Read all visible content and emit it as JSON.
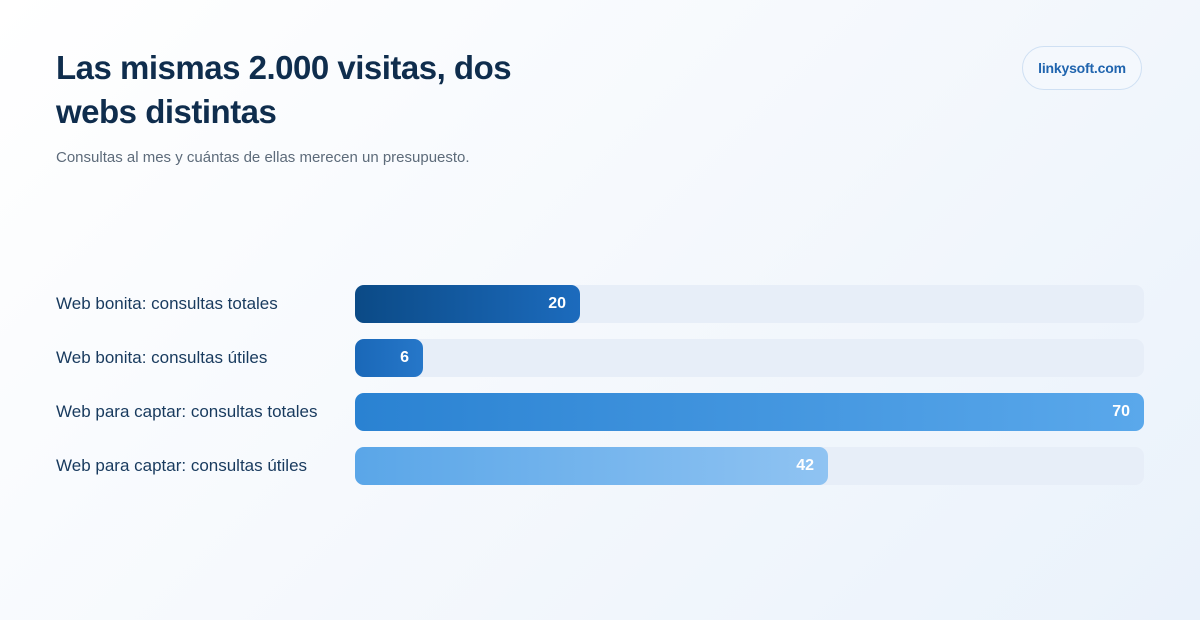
{
  "header": {
    "title": "Las mismas 2.000 visitas, dos webs distintas",
    "subtitle": "Consultas al mes y cuántas de ellas merecen un presupuesto.",
    "brand": "linkysoft.com"
  },
  "chart_data": {
    "type": "bar",
    "orientation": "horizontal",
    "title": "Las mismas 2.000 visitas, dos webs distintas",
    "subtitle": "Consultas al mes y cuántas de ellas merecen un presupuesto.",
    "categories": [
      "Web bonita: consultas totales",
      "Web bonita: consultas útiles",
      "Web para captar: consultas totales",
      "Web para captar: consultas útiles"
    ],
    "values": [
      20,
      6,
      70,
      42
    ],
    "xlim": [
      0,
      70
    ],
    "grid": false,
    "data_labels": true,
    "bar_colors": [
      [
        "#0b4a86",
        "#1c6bbd"
      ],
      [
        "#1a68b8",
        "#2677c9"
      ],
      [
        "#2a82d2",
        "#5aa8eb"
      ],
      [
        "#5aa6e8",
        "#8fc3f2"
      ]
    ],
    "track_color": "#e7eef8"
  }
}
